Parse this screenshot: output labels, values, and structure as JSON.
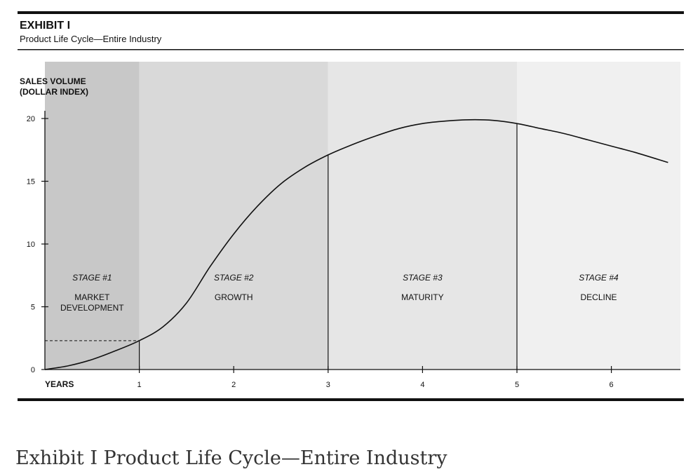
{
  "exhibit": {
    "label": "EXHIBIT I",
    "subtitle": "Product Life Cycle—Entire Industry"
  },
  "caption": "Exhibit I Product Life Cycle—Entire Industry",
  "colors": {
    "stage1_bg": "#c8c8c8",
    "stage2_bg": "#d9d9d9",
    "stage3_bg": "#e6e6e6",
    "stage4_bg": "#f0f0f0",
    "ink": "#111111"
  },
  "chart_data": {
    "type": "line",
    "ylabel_lines": [
      "SALES VOLUME",
      "(DOLLAR INDEX)"
    ],
    "xlabel": "YEARS",
    "xlim": [
      0,
      6.6
    ],
    "ylim": [
      0,
      20
    ],
    "x_ticks": [
      "1",
      "2",
      "3",
      "4",
      "5",
      "6"
    ],
    "y_ticks": [
      "0",
      "5",
      "10",
      "15",
      "20"
    ],
    "series": [
      {
        "x": [
          0,
          0.25,
          0.5,
          0.75,
          1.0,
          1.25,
          1.5,
          1.75,
          2.0,
          2.25,
          2.5,
          2.75,
          3.0,
          3.25,
          3.5,
          3.75,
          4.0,
          4.25,
          4.5,
          4.75,
          5.0,
          5.25,
          5.5,
          5.75,
          6.0,
          6.25,
          6.6
        ],
        "y": [
          0,
          0.3,
          0.8,
          1.5,
          2.3,
          3.4,
          5.3,
          8.2,
          10.8,
          13.0,
          14.8,
          16.1,
          17.1,
          17.9,
          18.6,
          19.2,
          19.6,
          19.8,
          19.9,
          19.85,
          19.6,
          19.2,
          18.8,
          18.3,
          17.8,
          17.3,
          16.5
        ]
      }
    ],
    "stage_boundaries": [
      1,
      3,
      5
    ],
    "reference_level": 2.3,
    "stages": [
      {
        "number": "STAGE #1",
        "name_lines": [
          "MARKET",
          "DEVELOPMENT"
        ]
      },
      {
        "number": "STAGE #2",
        "name_lines": [
          "GROWTH"
        ]
      },
      {
        "number": "STAGE #3",
        "name_lines": [
          "MATURITY"
        ]
      },
      {
        "number": "STAGE #4",
        "name_lines": [
          "DECLINE"
        ]
      }
    ]
  }
}
